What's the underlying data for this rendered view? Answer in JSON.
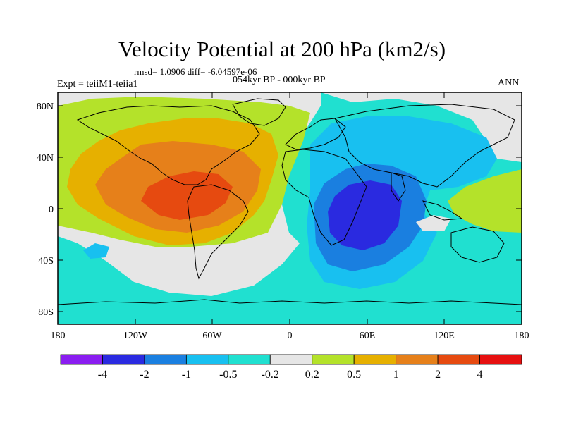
{
  "title": "Velocity Potential at 200 hPa (km2/s)",
  "stats": "rmsd= 1.0906 diff= -6.04597e-06",
  "experiment": "Expt = teiiM1-teiia1",
  "period": "054kyr BP - 000kyr BP",
  "season": "ANN",
  "axes": {
    "y_ticks": [
      "80N",
      "40N",
      "0",
      "40S",
      "80S"
    ],
    "x_ticks": [
      "180",
      "120W",
      "60W",
      "0",
      "60E",
      "120E",
      "180"
    ]
  },
  "colorbar": {
    "labels": [
      "-4",
      "-2",
      "-1",
      "-0.5",
      "-0.2",
      "0.2",
      "0.5",
      "1",
      "2",
      "4"
    ],
    "colors": [
      "#8a1df0",
      "#2a2ae0",
      "#1a7fe0",
      "#18c0f0",
      "#20e0d0",
      "#e6e6e6",
      "#b4e22a",
      "#e6b000",
      "#e6801a",
      "#e64a10",
      "#e61010"
    ]
  },
  "palette": {
    "land_outline": "#000000",
    "ocean_default": "#20e0d0"
  }
}
